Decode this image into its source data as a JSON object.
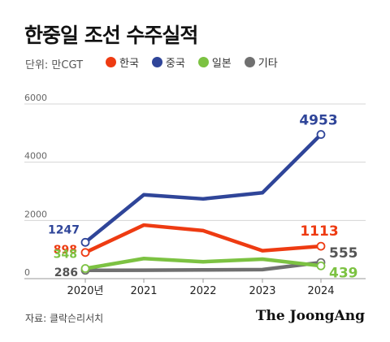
{
  "title": "한중일 조선 수주실적",
  "unit_label": "단위: 만CGT",
  "source": "자료: 클락슨리서치",
  "logo_text": "The JoongAng",
  "colors": {
    "korea": "#ee3b12",
    "china": "#2f4599",
    "japan": "#7cc242",
    "other": "#707070"
  },
  "chart_data": {
    "type": "line",
    "categories": [
      "2020년",
      "2021",
      "2022",
      "2023",
      "2024"
    ],
    "ylim": [
      0,
      6000
    ],
    "yticks": [
      "6000",
      "4000",
      "2000",
      "0"
    ],
    "grid": true,
    "legend_position": "top",
    "series": [
      {
        "name": "한국",
        "key": "korea",
        "values": [
          898,
          1840,
          1650,
          960,
          1113
        ],
        "color": "#ee3b12",
        "labels": [
          "898",
          "",
          "",
          "",
          "1113"
        ]
      },
      {
        "name": "중국",
        "key": "china",
        "values": [
          1247,
          2880,
          2740,
          2950,
          4953
        ],
        "color": "#2f4599",
        "labels": [
          "1247",
          "",
          "",
          "",
          "4953"
        ]
      },
      {
        "name": "일본",
        "key": "japan",
        "values": [
          348,
          690,
          580,
          670,
          439
        ],
        "color": "#7cc242",
        "labels": [
          "348",
          "",
          "",
          "",
          "439"
        ]
      },
      {
        "name": "기타",
        "key": "other",
        "values": [
          286,
          290,
          300,
          310,
          555
        ],
        "color": "#707070",
        "labels": [
          "286",
          "",
          "",
          "",
          "555"
        ]
      }
    ]
  }
}
